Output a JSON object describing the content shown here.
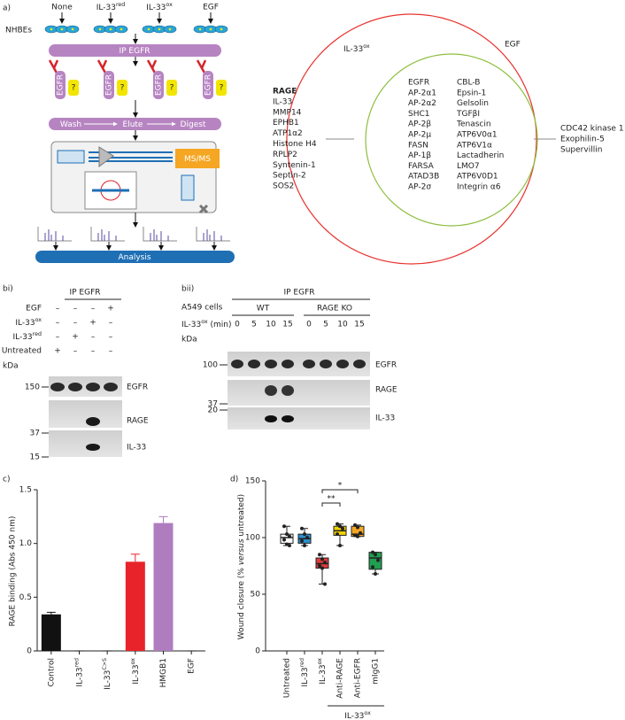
{
  "panel_a": {
    "label": "a)",
    "treatments": [
      "None",
      {
        "base": "IL-33",
        "sup": "red"
      },
      {
        "base": "IL-33",
        "sup": "ox"
      },
      "EGF"
    ],
    "cells_label": "NHBEs",
    "ip_label": "IP EGFR",
    "receptor_label": "EGFR",
    "unknown_label": "?",
    "steps": [
      "Wash",
      "Elute",
      "Digest"
    ],
    "ms_label": "MS/MS",
    "analysis_label": "Analysis",
    "venn": {
      "sets": [
        {
          "label": {
            "base": "IL-33",
            "sup": "ox"
          },
          "color": "#e8332f"
        },
        {
          "label": "EGF",
          "color": "#8dbf3f"
        }
      ],
      "only_first": [
        "RAGE",
        "IL-33",
        "MMP14",
        "EPHB1",
        "ATP1α2",
        "Histone H4",
        "RPLP2",
        "Syntenin-1",
        "Septin-2",
        "SOS2"
      ],
      "shared_col1": [
        "EGFR",
        "AP-2α1",
        "AP-2α2",
        "SHC1",
        "AP-2β",
        "AP-2μ",
        "FASN",
        "AP-1β",
        "FARSA",
        "ATAD3B",
        "AP-2σ"
      ],
      "shared_col2": [
        "CBL-B",
        "Epsin-1",
        "Gelsolin",
        "TGFβI",
        "Tenascin",
        "ATP6V0α1",
        "ATP6V1α",
        "Lactadherin",
        "LMO7",
        "ATP6V0D1",
        "Integrin α6"
      ],
      "only_second": [
        "CDC42 kinase 1",
        "Exophilin-5",
        "Supervillin"
      ]
    }
  },
  "panel_bi": {
    "label": "bi)",
    "ip_label": "IP EGFR",
    "conditions": [
      "EGF",
      {
        "base": "IL-33",
        "sup": "ox"
      },
      {
        "base": "IL-33",
        "sup": "red"
      },
      "Untreated"
    ],
    "signs": [
      [
        "–",
        "–",
        "–",
        "+"
      ],
      [
        "–",
        "–",
        "+",
        "–"
      ],
      [
        "–",
        "+",
        "–",
        "–"
      ],
      [
        "+",
        "–",
        "–",
        "–"
      ]
    ],
    "kda_label": "kDa",
    "markers": [
      150,
      37,
      15
    ],
    "bands": [
      "EGFR",
      "RAGE",
      "IL-33"
    ]
  },
  "panel_bii": {
    "label": "bii)",
    "ip_label": "IP EGFR",
    "cells_label": "A549 cells",
    "groups": [
      "WT",
      "RAGE KO"
    ],
    "time_label": {
      "base": "IL-33",
      "sup": "ox",
      "post": " (min)"
    },
    "times": [
      0,
      5,
      10,
      15,
      0,
      5,
      10,
      15
    ],
    "kda_label": "kDa",
    "markers": [
      100,
      37,
      20
    ],
    "bands": [
      "EGFR",
      "RAGE",
      "IL-33"
    ]
  },
  "chart_data": [
    {
      "type": "bar",
      "label": "c)",
      "ylabel": "RAGE binding (Abs 450 nm)",
      "categories": [
        "Control",
        {
          "base": "IL-33",
          "sup": "red"
        },
        {
          "base": "IL-33",
          "sup": "C>S"
        },
        {
          "base": "IL-33",
          "sup": "ox"
        },
        "HMGB1",
        "EGF"
      ],
      "values": [
        0.34,
        0,
        0,
        0.83,
        1.19,
        0
      ],
      "errors": [
        0.02,
        0,
        0,
        0.07,
        0.06,
        0
      ],
      "colors": [
        "#111111",
        "#111111",
        "#111111",
        "#e8232a",
        "#b07cc0",
        "#111111"
      ],
      "ylim": [
        0,
        1.5
      ],
      "yticks": [
        0,
        0.5,
        {
          "value": 1,
          "label": "1.0"
        },
        1.5
      ]
    },
    {
      "type": "box",
      "label": "d)",
      "ylabel": {
        "pre": "Wound closure (% ",
        "em": "versus",
        "post": " untreated)"
      },
      "categories": [
        "Untreated",
        {
          "base": "IL-33",
          "sup": "red"
        },
        {
          "base": "IL-33",
          "sup": "ox"
        },
        "Anti-RAGE",
        "Anti-EGFR",
        "mIgG1"
      ],
      "group_label": {
        "base": "IL-33",
        "sup": "ox"
      },
      "significance": [
        "**",
        "*"
      ],
      "series": [
        {
          "color": "#ffffff",
          "min": 93,
          "q1": 95,
          "median": 100,
          "q3": 103,
          "max": 110,
          "points": [
            110,
            103,
            101,
            98,
            94,
            93
          ]
        },
        {
          "color": "#2a8fd0",
          "min": 93,
          "q1": 95,
          "median": 99,
          "q3": 103,
          "max": 108,
          "points": [
            108,
            103,
            100,
            97,
            93
          ]
        },
        {
          "color": "#e03a3a",
          "min": 59,
          "q1": 73,
          "median": 77,
          "q3": 82,
          "max": 85,
          "points": [
            85,
            81,
            78,
            75,
            73,
            59
          ]
        },
        {
          "color": "#f5d200",
          "min": 93,
          "q1": 102,
          "median": 106,
          "q3": 110,
          "max": 112,
          "points": [
            112,
            110,
            108,
            103,
            93
          ]
        },
        {
          "color": "#f5a623",
          "min": 101,
          "q1": 101,
          "median": 103,
          "q3": 110,
          "max": 111,
          "points": [
            111,
            109,
            104,
            102,
            101
          ]
        },
        {
          "color": "#1fa050",
          "min": 68,
          "q1": 72,
          "median": 82,
          "q3": 87,
          "max": 87,
          "points": [
            87,
            85,
            80,
            74,
            68
          ]
        }
      ],
      "ylim": [
        0,
        150
      ],
      "yticks": [
        0,
        50,
        100,
        150
      ]
    }
  ]
}
